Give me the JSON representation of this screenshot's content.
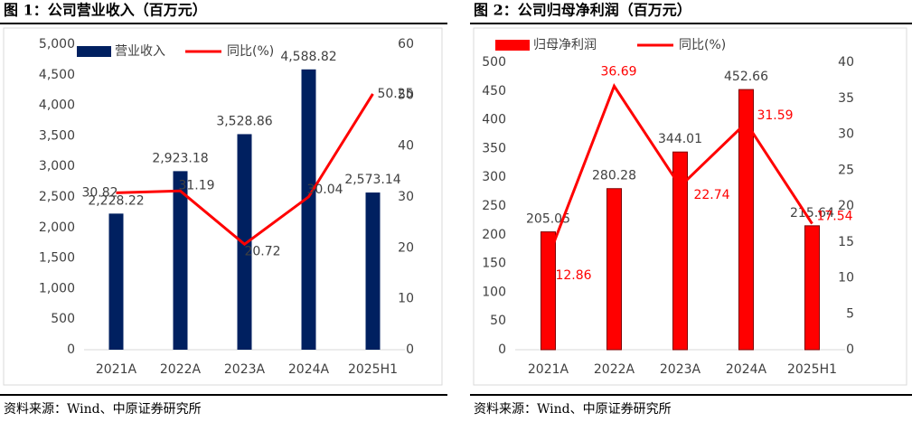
{
  "chart_data": [
    {
      "type": "bar",
      "title": "图 1：公司营业收入（百万元）",
      "source": "资料来源：Wind、中原证券研究所",
      "categories": [
        "2021A",
        "2022A",
        "2023A",
        "2024A",
        "2025H1"
      ],
      "series": [
        {
          "name": "营业收入",
          "type": "bar",
          "color": "#002060",
          "values": [
            2228.22,
            2923.18,
            3528.86,
            4588.82,
            2573.14
          ],
          "value_labels": [
            "2,228.22",
            "2,923.18",
            "3,528.86",
            "4,588.82",
            "2,573.14"
          ]
        },
        {
          "name": "同比(%)",
          "type": "line",
          "axis": "y2",
          "color": "#ff0000",
          "values": [
            30.82,
            31.19,
            20.72,
            30.04,
            50.25
          ]
        }
      ],
      "ylim": [
        0,
        5000
      ],
      "yticks": [
        0,
        500,
        {
          "value": 1000,
          "label": "1,000"
        },
        {
          "value": 1500,
          "label": "1,500"
        },
        {
          "value": 2000,
          "label": "2,000"
        },
        {
          "value": 2500,
          "label": "2,500"
        },
        {
          "value": 3000,
          "label": "3,000"
        },
        {
          "value": 3500,
          "label": "3,500"
        },
        {
          "value": 4000,
          "label": "4,000"
        },
        {
          "value": 4500,
          "label": "4,500"
        },
        {
          "value": 5000,
          "label": "5,000"
        }
      ],
      "y2lim": [
        0,
        60
      ],
      "y2ticks": [
        0,
        10,
        20,
        30,
        40,
        50,
        60
      ]
    },
    {
      "type": "bar",
      "title": "图 2：公司归母净利润（百万元）",
      "source": "资料来源：Wind、中原证券研究所",
      "categories": [
        "2021A",
        "2022A",
        "2023A",
        "2024A",
        "2025H1"
      ],
      "series": [
        {
          "name": "归母净利润",
          "type": "bar",
          "color": "#ff0000",
          "values": [
            205.05,
            280.28,
            344.01,
            452.66,
            215.64
          ]
        },
        {
          "name": "同比(%)",
          "type": "line",
          "axis": "y2",
          "color": "#ff0000",
          "values": [
            12.86,
            36.69,
            22.74,
            31.59,
            17.54
          ]
        }
      ],
      "ylim": [
        0,
        500
      ],
      "yticks": [
        0,
        50,
        100,
        150,
        200,
        250,
        300,
        350,
        400,
        450,
        500
      ],
      "y2lim": [
        0,
        40
      ],
      "y2ticks": [
        0,
        5,
        10,
        15,
        20,
        25,
        30,
        35,
        40
      ]
    }
  ]
}
